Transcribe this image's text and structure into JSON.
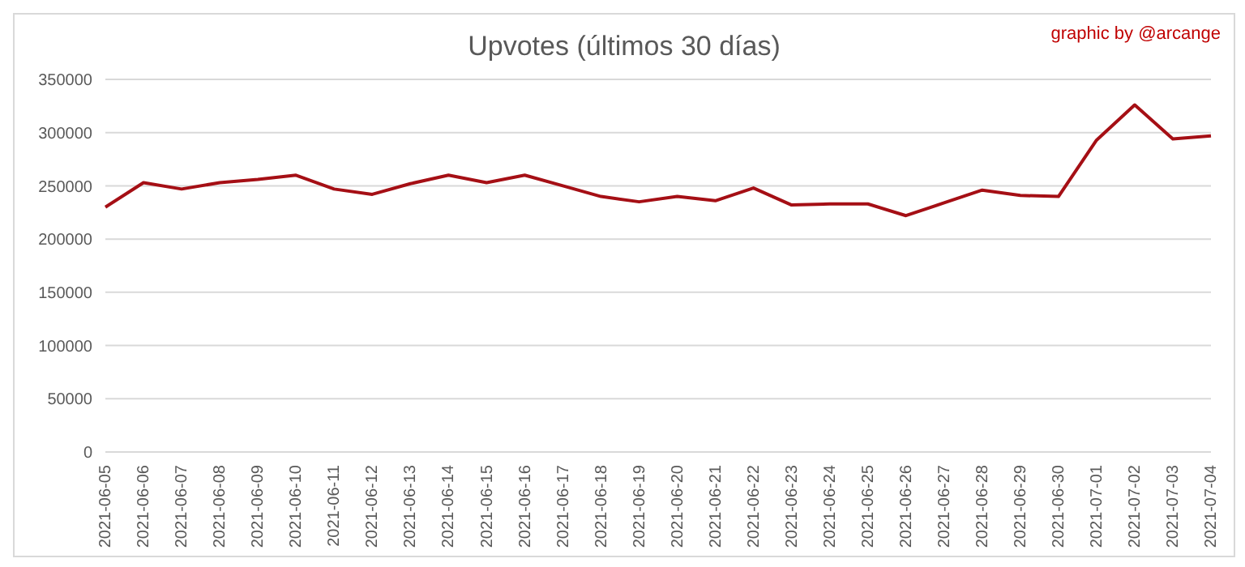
{
  "chart_data": {
    "type": "line",
    "title": "Upvotes (últimos 30 días)",
    "annotations": [
      "graphic by @arcange"
    ],
    "categories": [
      "2021-06-05",
      "2021-06-06",
      "2021-06-07",
      "2021-06-08",
      "2021-06-09",
      "2021-06-10",
      "2021-06-11",
      "2021-06-12",
      "2021-06-13",
      "2021-06-14",
      "2021-06-15",
      "2021-06-16",
      "2021-06-17",
      "2021-06-18",
      "2021-06-19",
      "2021-06-20",
      "2021-06-21",
      "2021-06-22",
      "2021-06-23",
      "2021-06-24",
      "2021-06-25",
      "2021-06-26",
      "2021-06-27",
      "2021-06-28",
      "2021-06-29",
      "2021-06-30",
      "2021-07-01",
      "2021-07-02",
      "2021-07-03",
      "2021-07-04"
    ],
    "series": [
      {
        "color": "#a50f15",
        "values": [
          230000,
          253000,
          247000,
          253000,
          256000,
          260000,
          247000,
          242000,
          252000,
          260000,
          253000,
          260000,
          250000,
          240000,
          235000,
          240000,
          236000,
          248000,
          232000,
          233000,
          233000,
          222000,
          234000,
          246000,
          241000,
          240000,
          293000,
          326000,
          294000,
          297000
        ]
      }
    ],
    "ylim": [
      0,
      350000
    ],
    "yticks": [
      0,
      50000,
      100000,
      150000,
      200000,
      250000,
      300000,
      350000
    ],
    "grid": "y",
    "legend": false,
    "marker": "none",
    "line_style": "solid"
  }
}
